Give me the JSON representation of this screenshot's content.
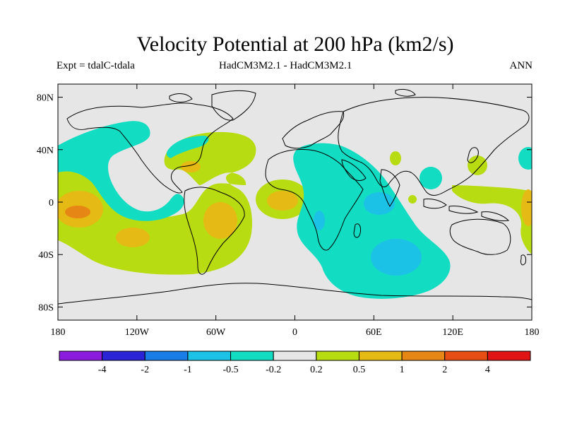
{
  "chart_data": {
    "type": "map",
    "title": "Velocity Potential at 200 hPa (km2/s)",
    "subtitle_left": "Expt = tdalC-tdala",
    "subtitle_center": "HadCM3M2.1 - HadCM3M2.1",
    "subtitle_right": "ANN",
    "lon_range": [
      -180,
      180
    ],
    "lat_range": [
      -90,
      90
    ],
    "x_ticks": [
      "180",
      "120W",
      "60W",
      "0",
      "60E",
      "120E",
      "180"
    ],
    "y_ticks": [
      "80N",
      "40N",
      "0",
      "40S",
      "80S"
    ],
    "colorbar": {
      "labels": [
        "-4",
        "-2",
        "-1",
        "-0.5",
        "-0.2",
        "0.2",
        "0.5",
        "1",
        "2",
        "4"
      ],
      "colors": [
        "#8b1cde",
        "#2a24d6",
        "#1a7ce6",
        "#1cc2e6",
        "#12dcc2",
        "#e6e6e6",
        "#b8dc12",
        "#e6ba14",
        "#e68614",
        "#e64e14",
        "#e01414"
      ]
    },
    "background_color": "#e6e6e6"
  }
}
